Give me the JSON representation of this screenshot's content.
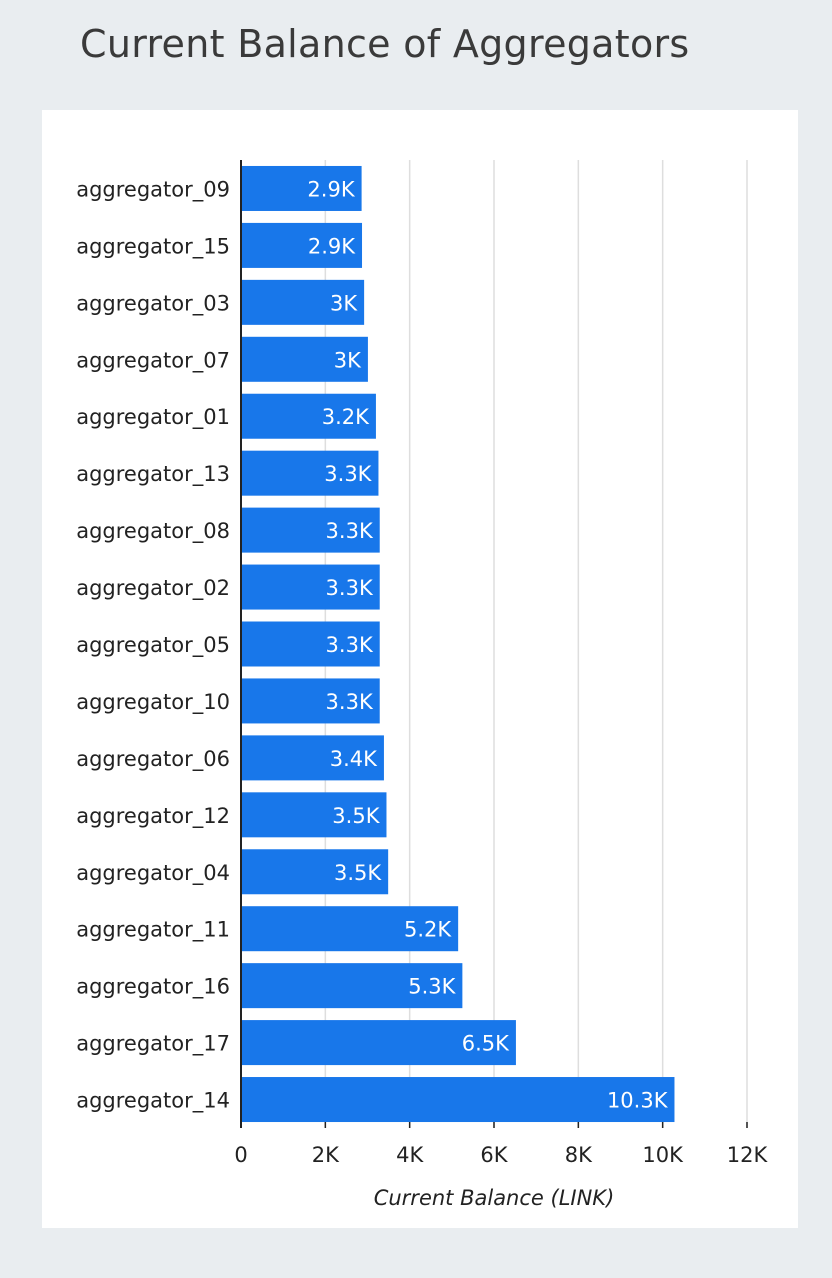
{
  "title": "Current Balance of Aggregators",
  "colors": {
    "bar": "#1877ea",
    "bar_label": "#ffffff",
    "grid": "#dedede",
    "axis": "#222222",
    "text": "#222222",
    "page_bg": "#e9edf0",
    "panel_bg": "#ffffff"
  },
  "chart_data": {
    "type": "bar",
    "orientation": "horizontal",
    "categories": [
      "aggregator_09",
      "aggregator_15",
      "aggregator_03",
      "aggregator_07",
      "aggregator_01",
      "aggregator_13",
      "aggregator_08",
      "aggregator_02",
      "aggregator_05",
      "aggregator_10",
      "aggregator_06",
      "aggregator_12",
      "aggregator_04",
      "aggregator_11",
      "aggregator_16",
      "aggregator_17",
      "aggregator_14"
    ],
    "values": [
      2860,
      2870,
      2920,
      3010,
      3200,
      3260,
      3290,
      3290,
      3290,
      3290,
      3390,
      3450,
      3490,
      5150,
      5250,
      6520,
      10280
    ],
    "data_labels": [
      "2.9K",
      "2.9K",
      "3K",
      "3K",
      "3.2K",
      "3.3K",
      "3.3K",
      "3.3K",
      "3.3K",
      "3.3K",
      "3.4K",
      "3.5K",
      "3.5K",
      "5.2K",
      "5.3K",
      "6.5K",
      "10.3K"
    ],
    "xlabel": "Current Balance (LINK)",
    "ylabel": "",
    "xlim": [
      0,
      12000
    ],
    "x_ticks": [
      0,
      2000,
      4000,
      6000,
      8000,
      10000,
      12000
    ],
    "x_tick_labels": [
      "0",
      "2K",
      "4K",
      "6K",
      "8K",
      "10K",
      "12K"
    ],
    "grid": true
  }
}
